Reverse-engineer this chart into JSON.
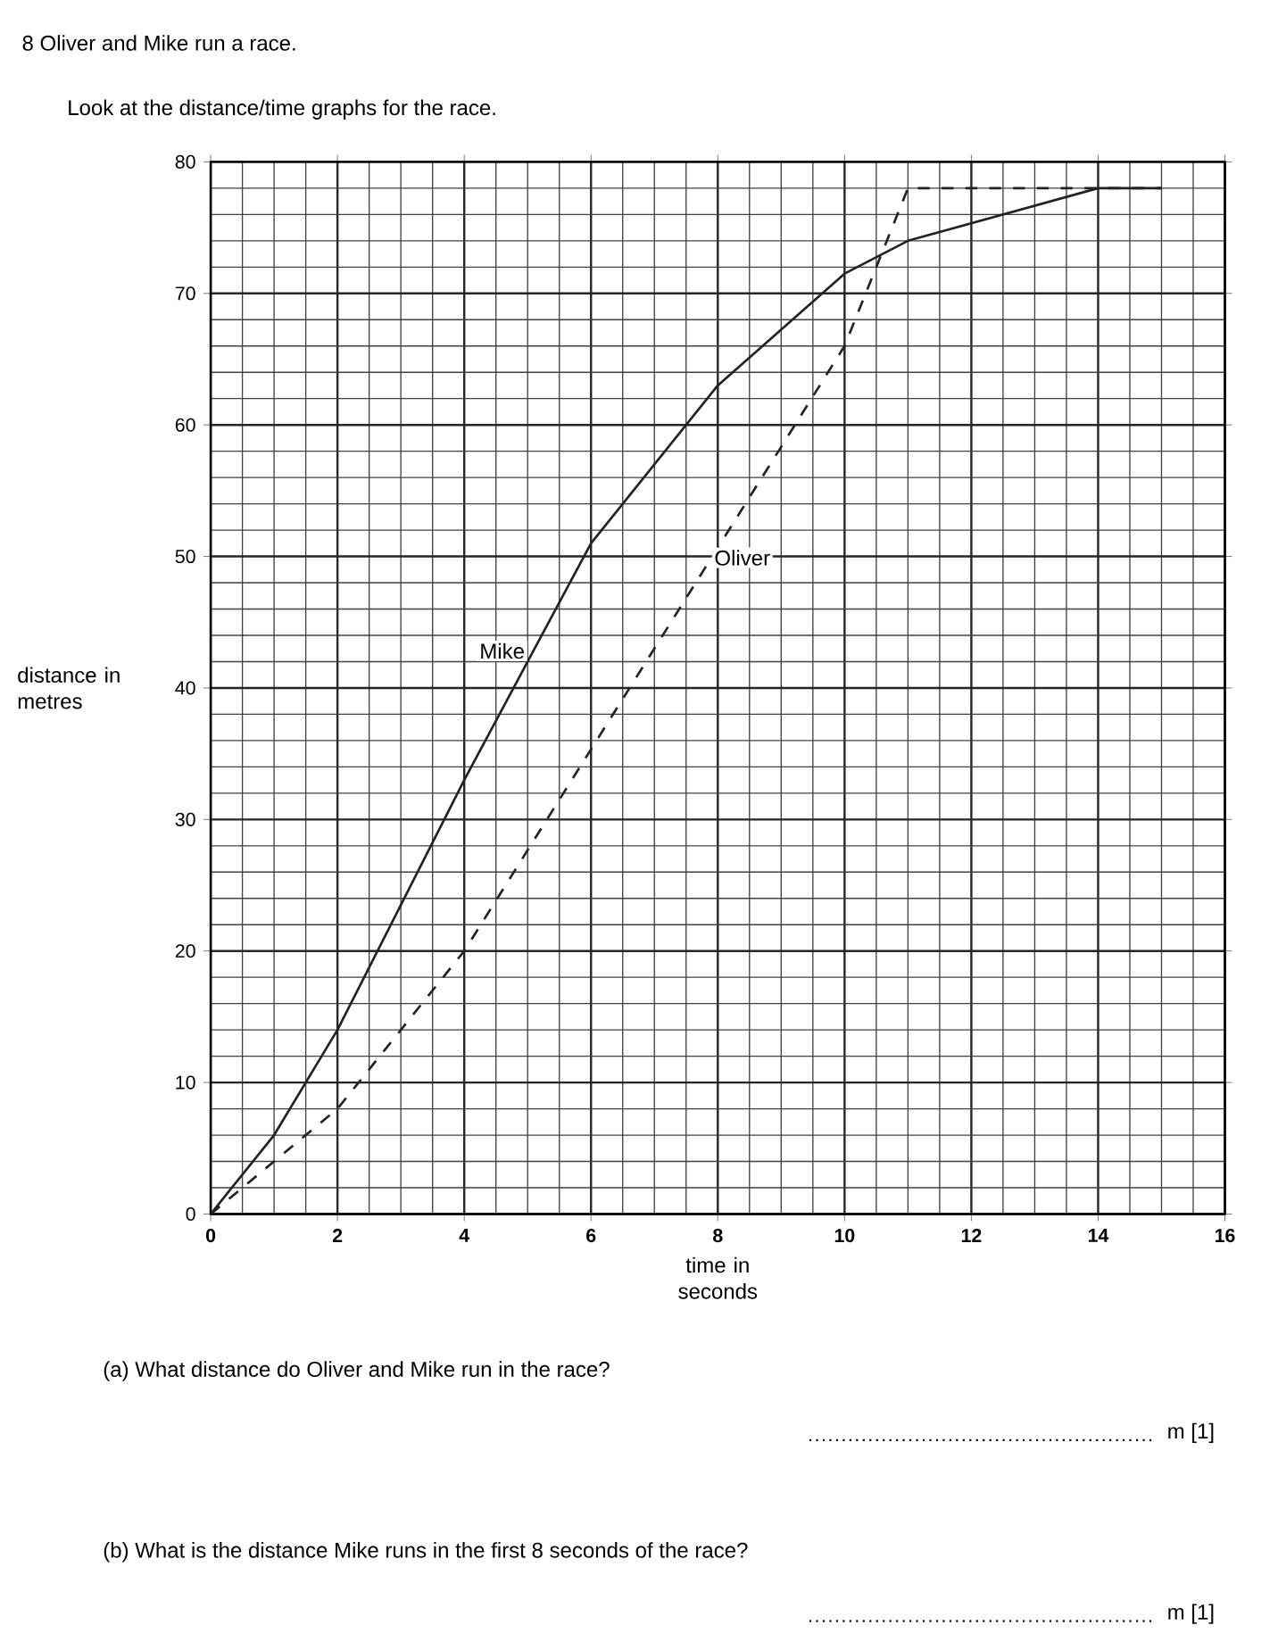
{
  "chart_data": {
    "type": "line",
    "title": "8 Oliver and Mike run a race.",
    "subtitle": "Look at the distance/time graphs for the race.",
    "xlabel": "time in seconds",
    "ylabel": "distance in metres",
    "xlim": [
      0,
      16
    ],
    "ylim": [
      0,
      80
    ],
    "xticks": [
      0,
      2,
      4,
      6,
      8,
      10,
      12,
      14,
      16
    ],
    "yticks": [
      0,
      10,
      20,
      30,
      40,
      50,
      60,
      70,
      80
    ],
    "grid": true,
    "marker": "none",
    "series": [
      {
        "name": "Mike",
        "color": "#222222",
        "line_style": "solid",
        "x": [
          0,
          1,
          2,
          4,
          5,
          6,
          8,
          10,
          11,
          14,
          15
        ],
        "values": [
          0,
          6,
          14,
          33,
          42,
          51,
          63,
          71.5,
          74,
          78,
          78
        ]
      },
      {
        "name": "Oliver",
        "color": "#222222",
        "line_style": "dashed",
        "x": [
          0,
          1,
          2,
          4,
          10,
          11,
          15
        ],
        "values": [
          0,
          4,
          8,
          20,
          66,
          78,
          78
        ]
      }
    ],
    "annotations": [
      "(a) What distance do Oliver and Mike run in the race?",
      "m [1]",
      "(b) What is the distance Mike runs in the first 8 seconds of the race?",
      "m [1]"
    ]
  }
}
